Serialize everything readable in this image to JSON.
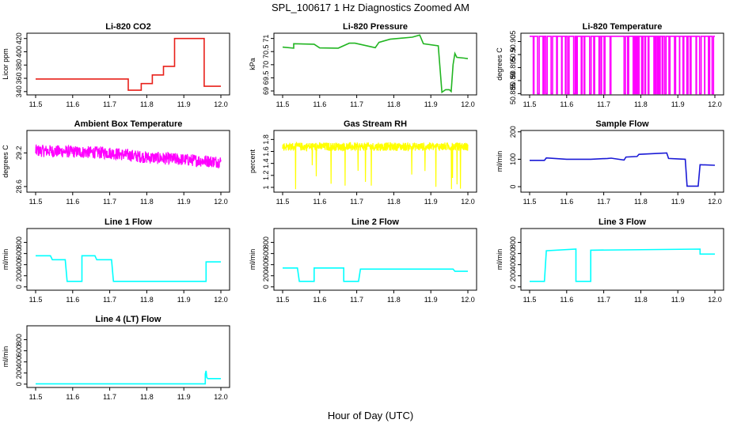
{
  "figure": {
    "title": "SPL_100617  1 Hz Diagnostics Zoomed AM",
    "xlabel": "Hour of Day (UTC)"
  },
  "chart_data": [
    {
      "type": "line",
      "title": "Li-820 CO2",
      "ylabel": "Licor ppm",
      "color": "#e8201a",
      "xlim": [
        11.5,
        12.0
      ],
      "ylim": [
        335,
        428
      ],
      "xticks": [
        "11.5",
        "11.6",
        "11.7",
        "11.8",
        "11.9",
        "12.0"
      ],
      "yticks": [
        340,
        360,
        380,
        400,
        420
      ],
      "series": [
        {
          "x": [
            11.5,
            11.75,
            11.75,
            11.785,
            11.785,
            11.815,
            11.815,
            11.845,
            11.845,
            11.875,
            11.875,
            11.955,
            11.955,
            12.0
          ],
          "y": [
            359,
            359,
            342,
            342,
            352,
            352,
            365,
            365,
            378,
            378,
            420,
            420,
            348,
            348
          ]
        }
      ]
    },
    {
      "type": "line",
      "title": "Li-820 Pressure",
      "ylabel": "kPa",
      "color": "#22b522",
      "xlim": [
        11.5,
        12.0
      ],
      "ylim": [
        68.85,
        71.2
      ],
      "xticks": [
        "11.5",
        "11.6",
        "11.7",
        "11.8",
        "11.9",
        "12.0"
      ],
      "yticks": [
        69.0,
        69.5,
        70.0,
        70.5,
        71.0
      ],
      "series": [
        {
          "x": [
            11.5,
            11.53,
            11.53,
            11.585,
            11.6,
            11.65,
            11.68,
            11.695,
            11.75,
            11.76,
            11.79,
            11.85,
            11.87,
            11.88,
            11.92,
            11.93,
            11.94,
            11.95,
            11.955,
            11.96,
            11.965,
            11.97,
            11.99,
            12.0
          ],
          "y": [
            70.67,
            70.63,
            70.8,
            70.78,
            70.64,
            70.63,
            70.82,
            70.82,
            70.65,
            70.85,
            70.97,
            71.05,
            71.13,
            70.8,
            70.72,
            68.95,
            69.05,
            69.05,
            68.98,
            70.0,
            70.43,
            70.28,
            70.25,
            70.23
          ]
        }
      ]
    },
    {
      "type": "line",
      "title": "Li-820 Temperature",
      "ylabel": "degrees C",
      "color": "#ff00ff",
      "xlim": [
        11.5,
        12.0
      ],
      "ylim": [
        50.8845,
        50.9082
      ],
      "xticks": [
        "11.5",
        "11.6",
        "11.7",
        "11.8",
        "11.9",
        "12.0"
      ],
      "yticks": [
        50.885,
        50.89,
        50.895,
        50.9,
        50.905
      ],
      "series": [
        {
          "toggle_between": [
            50.885,
            50.907
          ]
        }
      ]
    },
    {
      "type": "line",
      "title": "Ambient Box Temperature",
      "ylabel": "degrees C",
      "color": "#ff00ff",
      "xlim": [
        11.5,
        12.0
      ],
      "ylim": [
        28.5,
        29.6
      ],
      "xticks": [
        "11.5",
        "11.6",
        "11.7",
        "11.8",
        "11.9",
        "12.0"
      ],
      "yticks": [
        28.6,
        29.2
      ],
      "series": [
        {
          "x": [
            11.5,
            11.7,
            11.8,
            12.0
          ],
          "y": [
            29.24,
            29.2,
            29.12,
            29.04
          ],
          "noise": 0.11
        }
      ]
    },
    {
      "type": "line",
      "title": "Gas Stream RH",
      "ylabel": "percent",
      "color": "#ffff00",
      "xlim": [
        11.5,
        12.0
      ],
      "ylim": [
        0.92,
        1.95
      ],
      "xticks": [
        "11.5",
        "11.6",
        "11.7",
        "11.8",
        "11.9",
        "12.0"
      ],
      "yticks": [
        1.0,
        1.2,
        1.4,
        1.6,
        1.8
      ],
      "series": [
        {
          "x": [
            11.5,
            12.0
          ],
          "y": [
            1.68,
            1.68
          ],
          "noise": 0.07,
          "dips_to": 0.95
        }
      ]
    },
    {
      "type": "line",
      "title": "Sample Flow",
      "ylabel": "ml/min",
      "color": "#1a1ad6",
      "xlim": [
        11.5,
        12.0
      ],
      "ylim": [
        -20,
        205
      ],
      "xticks": [
        "11.5",
        "11.6",
        "11.7",
        "11.8",
        "11.9",
        "12.0"
      ],
      "yticks": [
        0,
        100,
        200
      ],
      "series": [
        {
          "x": [
            11.5,
            11.54,
            11.545,
            11.6,
            11.66,
            11.665,
            11.71,
            11.72,
            11.755,
            11.76,
            11.79,
            11.795,
            11.87,
            11.875,
            11.92,
            11.925,
            11.955,
            11.96,
            12.0
          ],
          "y": [
            96,
            96,
            105,
            100,
            100,
            100,
            103,
            104,
            97,
            108,
            110,
            118,
            123,
            103,
            100,
            2,
            2,
            80,
            78
          ]
        }
      ]
    },
    {
      "type": "line",
      "title": "Line 1 Flow",
      "ylabel": "ml/min",
      "color": "#00ffff",
      "xlim": [
        11.5,
        12.0
      ],
      "ylim": [
        -60,
        1050
      ],
      "xticks": [
        "11.5",
        "11.6",
        "11.7",
        "11.8",
        "11.9",
        "12.0"
      ],
      "yticks": [
        0,
        200,
        400,
        600,
        800
      ],
      "series": [
        {
          "x": [
            11.5,
            11.54,
            11.545,
            11.58,
            11.585,
            11.625,
            11.625,
            11.66,
            11.665,
            11.705,
            11.71,
            11.96,
            11.96,
            12.0
          ],
          "y": [
            560,
            560,
            490,
            490,
            100,
            100,
            560,
            560,
            490,
            490,
            100,
            100,
            450,
            450
          ]
        }
      ]
    },
    {
      "type": "line",
      "title": "Line 2 Flow",
      "ylabel": "ml/min",
      "color": "#00ffff",
      "xlim": [
        11.5,
        12.0
      ],
      "ylim": [
        -60,
        1050
      ],
      "xticks": [
        "11.5",
        "11.6",
        "11.7",
        "11.8",
        "11.9",
        "12.0"
      ],
      "yticks": [
        0,
        200,
        400,
        600,
        800
      ],
      "series": [
        {
          "x": [
            11.5,
            11.54,
            11.545,
            11.585,
            11.585,
            11.665,
            11.665,
            11.705,
            11.71,
            11.96,
            11.965,
            12.0
          ],
          "y": [
            340,
            340,
            100,
            100,
            340,
            340,
            100,
            100,
            320,
            320,
            280,
            280
          ]
        }
      ]
    },
    {
      "type": "line",
      "title": "Line 3 Flow",
      "ylabel": "ml/min",
      "color": "#00ffff",
      "xlim": [
        11.5,
        12.0
      ],
      "ylim": [
        -60,
        1050
      ],
      "xticks": [
        "11.5",
        "11.6",
        "11.7",
        "11.8",
        "11.9",
        "12.0"
      ],
      "yticks": [
        0,
        200,
        400,
        600,
        800
      ],
      "series": [
        {
          "x": [
            11.5,
            11.54,
            11.545,
            11.625,
            11.625,
            11.665,
            11.665,
            11.96,
            11.96,
            12.0
          ],
          "y": [
            100,
            100,
            650,
            680,
            100,
            100,
            660,
            680,
            590,
            590
          ]
        }
      ]
    },
    {
      "type": "line",
      "title": "Line 4 (LT) Flow",
      "ylabel": "ml/min",
      "color": "#00ffff",
      "xlim": [
        11.5,
        12.0
      ],
      "ylim": [
        -60,
        1050
      ],
      "xticks": [
        "11.5",
        "11.6",
        "11.7",
        "11.8",
        "11.9",
        "12.0"
      ],
      "yticks": [
        0,
        200,
        400,
        600,
        800
      ],
      "series": [
        {
          "x": [
            11.5,
            11.958,
            11.958,
            11.96,
            11.962,
            11.965,
            12.0
          ],
          "y": [
            5,
            5,
            180,
            240,
            120,
            100,
            100
          ]
        }
      ]
    }
  ]
}
